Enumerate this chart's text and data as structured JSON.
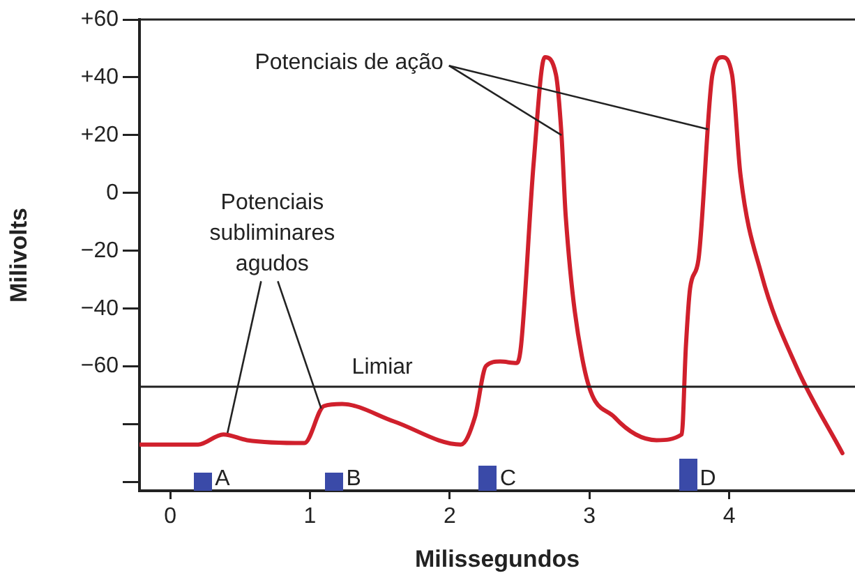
{
  "chart_data": {
    "type": "line",
    "xlabel": "Milissegundos",
    "ylabel": "Milivolts",
    "xlim": [
      -0.22,
      4.9
    ],
    "xticks": [
      0,
      1,
      2,
      3,
      4
    ],
    "ylim": [
      -103,
      60
    ],
    "yticks": [
      {
        "value": 60,
        "label": "+60"
      },
      {
        "value": 40,
        "label": "+40"
      },
      {
        "value": 20,
        "label": "+20"
      },
      0,
      {
        "value": -20,
        "label": "−20"
      },
      {
        "value": -40,
        "label": "−40"
      },
      {
        "value": -60,
        "label": "−60"
      },
      {
        "value": -80,
        "label": null
      },
      {
        "value": -100,
        "label": null
      }
    ],
    "series": [
      {
        "color": "#d0202c",
        "x": [
          -0.22,
          0.2,
          0.38,
          0.55,
          0.96,
          1.1,
          1.23,
          1.6,
          2.08,
          2.18,
          2.26,
          2.36,
          2.48,
          2.51,
          2.6,
          2.68,
          2.76,
          2.8,
          2.83,
          2.96,
          3.18,
          3.48,
          3.66,
          3.69,
          3.72,
          3.78,
          3.88,
          3.95,
          4.02,
          4.08,
          4.23,
          4.48,
          4.81
        ],
        "values": [
          -87,
          -87,
          -83.5,
          -85.5,
          -86.5,
          -73.7,
          -73,
          -79,
          -87,
          -77.6,
          -59.8,
          -58.3,
          -58.8,
          -53,
          10,
          47,
          41,
          20,
          -8,
          -60,
          -77.6,
          -85.5,
          -83.5,
          -53,
          -33,
          -23,
          41,
          47,
          41,
          6.5,
          -28,
          -60,
          -90
        ]
      }
    ],
    "ref_lines": [
      {
        "axis": "y",
        "value": -67,
        "label": "Limiar",
        "color": "#222222"
      }
    ],
    "annotations": [
      {
        "text": "Potenciais de ação",
        "x": 2.8,
        "y": 20
      },
      {
        "text": "Potenciais subliminares agudos",
        "x": 0.41,
        "y": -83
      },
      "A",
      "B",
      "C",
      "D"
    ],
    "grid": false,
    "marker": "none",
    "line_style": "solid"
  }
}
